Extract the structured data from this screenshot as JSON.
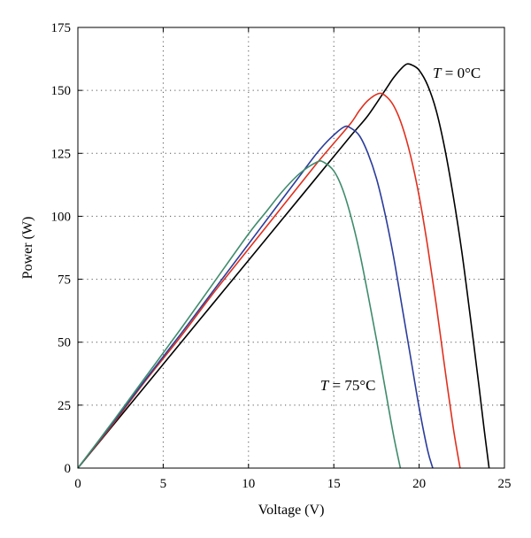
{
  "chart_data": {
    "type": "line",
    "xlabel": "Voltage (V)",
    "ylabel": "Power (W)",
    "xlim": [
      0,
      25
    ],
    "ylim": [
      0,
      175
    ],
    "xticks": [
      "0",
      "5",
      "10",
      "15",
      "20",
      "25"
    ],
    "yticks": [
      "0",
      "25",
      "50",
      "75",
      "100",
      "125",
      "150",
      "175"
    ],
    "grid": "dotted",
    "annotations": [
      {
        "var": "T",
        "text": " = 0°C",
        "x": 20.8,
        "y": 155
      },
      {
        "var": "T",
        "text": " = 75°C",
        "x": 14.2,
        "y": 31
      }
    ],
    "series": [
      {
        "color": "#000000",
        "x": [
          0,
          2,
          4,
          6,
          8,
          10,
          12,
          14,
          16,
          17,
          18,
          18.5,
          19,
          19.3,
          19.6,
          20,
          20.5,
          21,
          21.5,
          22,
          22.5,
          23,
          23.5,
          23.8,
          24.1
        ],
        "y": [
          0,
          16.5,
          33,
          49.5,
          66,
          82.5,
          99,
          115.5,
          132,
          140,
          150,
          155,
          159,
          160.5,
          160,
          158,
          152,
          142,
          127,
          108,
          86,
          60,
          33,
          16,
          0
        ]
      },
      {
        "color": "#e0301e",
        "x": [
          0,
          2,
          4,
          6,
          8,
          10,
          12,
          14,
          15,
          16,
          16.5,
          17,
          17.6,
          18,
          18.5,
          19,
          19.5,
          20,
          20.5,
          21,
          21.5,
          22,
          22.4
        ],
        "y": [
          0,
          17,
          35,
          52,
          70,
          87,
          104,
          121,
          129,
          137,
          142,
          146,
          148.7,
          148,
          144,
          136,
          124,
          108,
          88,
          65,
          40,
          16,
          0
        ]
      },
      {
        "color": "#2b3d9b",
        "x": [
          0,
          2,
          4,
          6,
          8,
          10,
          12,
          13,
          14,
          14.8,
          15.6,
          16,
          16.5,
          17,
          17.5,
          18,
          18.5,
          19,
          19.5,
          20,
          20.5,
          20.8
        ],
        "y": [
          0,
          17.5,
          35.5,
          53,
          71,
          89,
          107,
          116,
          125,
          131,
          135.5,
          135,
          132,
          125,
          115,
          101,
          84,
          64,
          44,
          24,
          7,
          0
        ]
      },
      {
        "color": "#3f8c6c",
        "x": [
          0,
          2,
          4,
          6,
          8,
          10,
          11,
          12,
          13,
          14,
          14.4,
          15,
          15.5,
          16,
          16.5,
          17,
          17.5,
          18,
          18.5,
          18.9
        ],
        "y": [
          0,
          18,
          36.5,
          55,
          74,
          93,
          101.5,
          110,
          117,
          121.5,
          121.5,
          118,
          111,
          100,
          86,
          69,
          51,
          32,
          13,
          0
        ]
      }
    ]
  }
}
